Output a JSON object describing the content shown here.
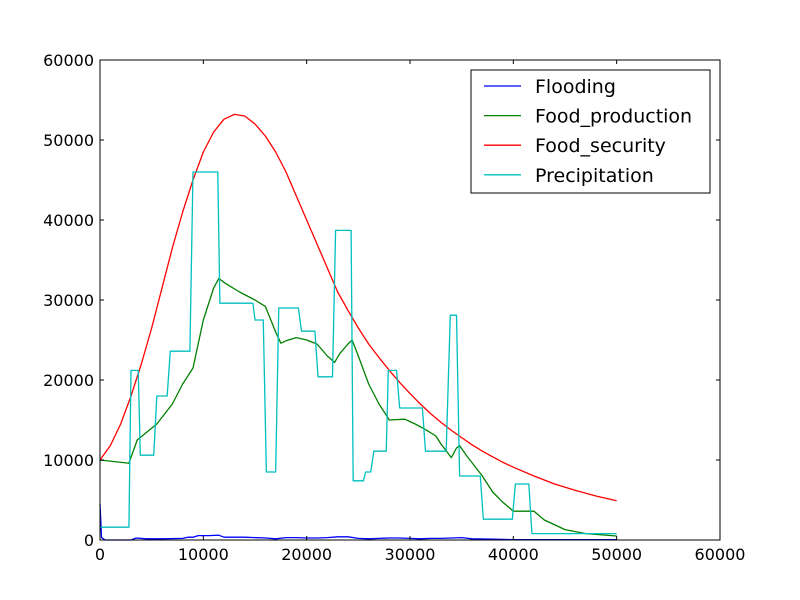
{
  "chart_data": {
    "type": "line",
    "title": "",
    "xlabel": "",
    "ylabel": "",
    "xlim": [
      0,
      60000
    ],
    "ylim": [
      0,
      60000
    ],
    "xticks": [
      0,
      10000,
      20000,
      30000,
      40000,
      50000,
      60000
    ],
    "yticks": [
      0,
      10000,
      20000,
      30000,
      40000,
      50000,
      60000
    ],
    "xtick_labels": [
      "0",
      "10000",
      "20000",
      "30000",
      "40000",
      "50000",
      "60000"
    ],
    "ytick_labels": [
      "0",
      "10000",
      "20000",
      "30000",
      "40000",
      "50000",
      "60000"
    ],
    "grid": false,
    "legend_position": "top-right",
    "series": [
      {
        "name": "Flooding",
        "color": "#0000ff",
        "points": [
          [
            0,
            4500
          ],
          [
            150,
            300
          ],
          [
            500,
            0
          ],
          [
            3000,
            0
          ],
          [
            3500,
            250
          ],
          [
            4500,
            150
          ],
          [
            6000,
            150
          ],
          [
            8000,
            200
          ],
          [
            8500,
            350
          ],
          [
            9000,
            350
          ],
          [
            9500,
            550
          ],
          [
            10500,
            550
          ],
          [
            11500,
            600
          ],
          [
            12000,
            350
          ],
          [
            14000,
            350
          ],
          [
            16000,
            250
          ],
          [
            17000,
            150
          ],
          [
            18000,
            300
          ],
          [
            19000,
            300
          ],
          [
            20000,
            250
          ],
          [
            21000,
            250
          ],
          [
            22000,
            300
          ],
          [
            23000,
            400
          ],
          [
            24000,
            400
          ],
          [
            25000,
            200
          ],
          [
            26000,
            150
          ],
          [
            27000,
            200
          ],
          [
            28000,
            250
          ],
          [
            29000,
            250
          ],
          [
            30000,
            200
          ],
          [
            31000,
            150
          ],
          [
            32000,
            200
          ],
          [
            33000,
            200
          ],
          [
            34000,
            250
          ],
          [
            35000,
            300
          ],
          [
            36000,
            150
          ],
          [
            38000,
            100
          ],
          [
            40000,
            50
          ],
          [
            45000,
            50
          ],
          [
            50000,
            50
          ]
        ]
      },
      {
        "name": "Food_production",
        "color": "#008000",
        "points": [
          [
            0,
            10000
          ],
          [
            2800,
            9600
          ],
          [
            3600,
            12500
          ],
          [
            5500,
            14500
          ],
          [
            7000,
            17000
          ],
          [
            8000,
            19500
          ],
          [
            9000,
            21500
          ],
          [
            10000,
            27500
          ],
          [
            11000,
            31500
          ],
          [
            11500,
            32700
          ],
          [
            12000,
            32200
          ],
          [
            13500,
            31000
          ],
          [
            15000,
            30000
          ],
          [
            16000,
            29200
          ],
          [
            17000,
            26000
          ],
          [
            17500,
            24600
          ],
          [
            18000,
            24900
          ],
          [
            19000,
            25300
          ],
          [
            20000,
            25000
          ],
          [
            21000,
            24500
          ],
          [
            22000,
            23000
          ],
          [
            22700,
            22200
          ],
          [
            23200,
            23300
          ],
          [
            24000,
            24500
          ],
          [
            24400,
            25000
          ],
          [
            25000,
            23000
          ],
          [
            26000,
            19500
          ],
          [
            27000,
            17000
          ],
          [
            28000,
            15000
          ],
          [
            29500,
            15100
          ],
          [
            30500,
            14500
          ],
          [
            31500,
            13800
          ],
          [
            32500,
            13000
          ],
          [
            33000,
            12000
          ],
          [
            34000,
            10300
          ],
          [
            34500,
            11500
          ],
          [
            34800,
            11800
          ],
          [
            35500,
            10500
          ],
          [
            37000,
            8000
          ],
          [
            38000,
            6000
          ],
          [
            39000,
            4700
          ],
          [
            40000,
            3600
          ],
          [
            42000,
            3600
          ],
          [
            43000,
            2500
          ],
          [
            45000,
            1300
          ],
          [
            47000,
            800
          ],
          [
            50000,
            500
          ]
        ]
      },
      {
        "name": "Food_security",
        "color": "#ff0000",
        "points": [
          [
            0,
            10000
          ],
          [
            1000,
            11800
          ],
          [
            2000,
            14500
          ],
          [
            3000,
            18000
          ],
          [
            4000,
            22000
          ],
          [
            5000,
            26500
          ],
          [
            6000,
            31500
          ],
          [
            7000,
            36500
          ],
          [
            8000,
            41000
          ],
          [
            9000,
            45000
          ],
          [
            10000,
            48500
          ],
          [
            11000,
            51000
          ],
          [
            12000,
            52600
          ],
          [
            13000,
            53200
          ],
          [
            14000,
            53000
          ],
          [
            15000,
            52000
          ],
          [
            16000,
            50500
          ],
          [
            17000,
            48500
          ],
          [
            18000,
            46000
          ],
          [
            19000,
            43000
          ],
          [
            20000,
            40000
          ],
          [
            21000,
            37000
          ],
          [
            22000,
            34000
          ],
          [
            23000,
            31000
          ],
          [
            24000,
            28700
          ],
          [
            25000,
            26500
          ],
          [
            26000,
            24500
          ],
          [
            27000,
            22800
          ],
          [
            28000,
            21200
          ],
          [
            29000,
            19700
          ],
          [
            30000,
            18300
          ],
          [
            31000,
            17000
          ],
          [
            32000,
            15800
          ],
          [
            33000,
            14700
          ],
          [
            34000,
            13700
          ],
          [
            35000,
            12800
          ],
          [
            36000,
            11900
          ],
          [
            37000,
            11100
          ],
          [
            38000,
            10400
          ],
          [
            39000,
            9700
          ],
          [
            40000,
            9100
          ],
          [
            42000,
            8000
          ],
          [
            44000,
            7000
          ],
          [
            46000,
            6200
          ],
          [
            48000,
            5500
          ],
          [
            50000,
            4900
          ]
        ]
      },
      {
        "name": "Precipitation",
        "color": "#00bfbf",
        "points": [
          [
            0,
            1600
          ],
          [
            2800,
            1600
          ],
          [
            3000,
            21200
          ],
          [
            3700,
            21200
          ],
          [
            3900,
            10600
          ],
          [
            5200,
            10600
          ],
          [
            5500,
            18000
          ],
          [
            6500,
            18000
          ],
          [
            6800,
            23600
          ],
          [
            8700,
            23600
          ],
          [
            9000,
            46000
          ],
          [
            11400,
            46000
          ],
          [
            11600,
            29600
          ],
          [
            14800,
            29600
          ],
          [
            15000,
            27500
          ],
          [
            15800,
            27500
          ],
          [
            16100,
            8500
          ],
          [
            17000,
            8500
          ],
          [
            17300,
            29000
          ],
          [
            19200,
            29000
          ],
          [
            19500,
            26100
          ],
          [
            20800,
            26100
          ],
          [
            21100,
            20400
          ],
          [
            22500,
            20400
          ],
          [
            22800,
            38700
          ],
          [
            24300,
            38700
          ],
          [
            24500,
            7400
          ],
          [
            25500,
            7400
          ],
          [
            25700,
            8500
          ],
          [
            26200,
            8500
          ],
          [
            26500,
            11100
          ],
          [
            27700,
            11100
          ],
          [
            27900,
            21200
          ],
          [
            28700,
            21200
          ],
          [
            29000,
            16500
          ],
          [
            31200,
            16500
          ],
          [
            31500,
            11100
          ],
          [
            33500,
            11100
          ],
          [
            33900,
            28100
          ],
          [
            34500,
            28100
          ],
          [
            34800,
            8000
          ],
          [
            36800,
            8000
          ],
          [
            37100,
            2600
          ],
          [
            39900,
            2600
          ],
          [
            40200,
            7000
          ],
          [
            41500,
            7000
          ],
          [
            41800,
            800
          ],
          [
            50000,
            800
          ]
        ]
      }
    ]
  }
}
